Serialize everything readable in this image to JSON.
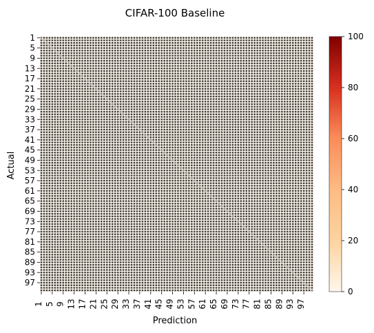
{
  "chart_data": {
    "type": "heatmap",
    "title": "CIFAR-100 Baseline",
    "xlabel": "Prediction",
    "ylabel": "Actual",
    "n_classes": 100,
    "x_tick_labels": [
      "1",
      "5",
      "9",
      "13",
      "17",
      "21",
      "25",
      "29",
      "33",
      "37",
      "41",
      "45",
      "49",
      "53",
      "57",
      "61",
      "65",
      "69",
      "73",
      "77",
      "81",
      "85",
      "89",
      "93",
      "97"
    ],
    "y_tick_labels": [
      "1",
      "5",
      "9",
      "13",
      "17",
      "21",
      "25",
      "29",
      "33",
      "37",
      "41",
      "45",
      "49",
      "53",
      "57",
      "61",
      "65",
      "69",
      "73",
      "77",
      "81",
      "85",
      "89",
      "93",
      "97"
    ],
    "colorbar": {
      "colormap": "OrRd",
      "min": 0,
      "max": 100,
      "ticks": [
        "0",
        "20",
        "40",
        "60",
        "80",
        "100"
      ]
    },
    "annotated": true,
    "diagonal_pattern": "true class counts along diagonal, near-zero off-diagonal counts"
  }
}
